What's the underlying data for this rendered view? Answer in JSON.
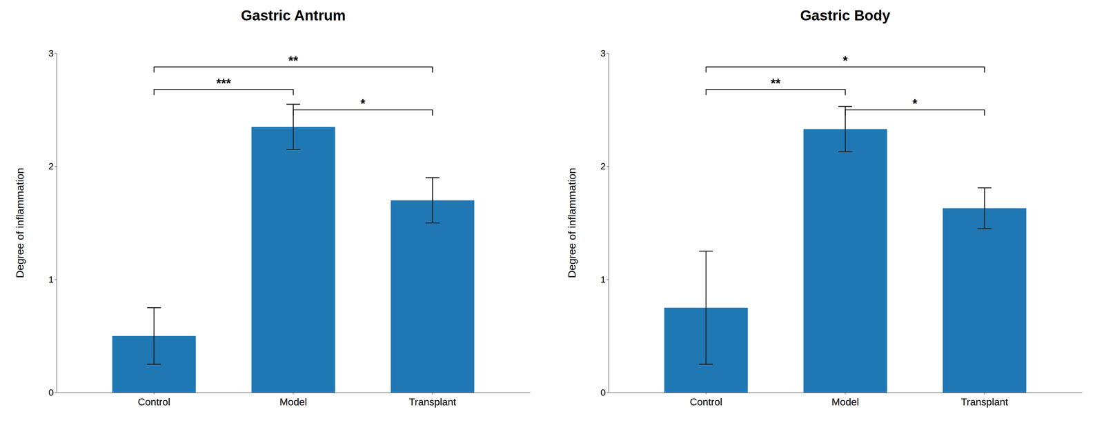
{
  "chart_data": [
    {
      "type": "bar",
      "title": "Gastric Antrum",
      "categories": [
        "Control",
        "Model",
        "Transplant"
      ],
      "values": [
        0.5,
        2.35,
        1.7
      ],
      "errors": [
        0.25,
        0.2,
        0.2
      ],
      "ylabel": "Degree of inflammation",
      "ylim": [
        0,
        3
      ],
      "yticks": [
        0,
        1,
        2,
        3
      ],
      "grid": false,
      "significance": [
        {
          "x1": 0,
          "x2": 1,
          "y": 2.68,
          "label": "***"
        },
        {
          "x1": 0,
          "x2": 2,
          "y": 2.88,
          "label": "**"
        },
        {
          "x1": 1,
          "x2": 2,
          "y": 2.5,
          "label": "*"
        }
      ]
    },
    {
      "type": "bar",
      "title": "Gastric Body",
      "categories": [
        "Control",
        "Model",
        "Transplant"
      ],
      "values": [
        0.75,
        2.33,
        1.63
      ],
      "errors": [
        0.5,
        0.2,
        0.18
      ],
      "ylabel": "Degree of inflammation",
      "ylim": [
        0,
        3
      ],
      "yticks": [
        0,
        1,
        2,
        3
      ],
      "grid": false,
      "significance": [
        {
          "x1": 0,
          "x2": 1,
          "y": 2.68,
          "label": "**"
        },
        {
          "x1": 0,
          "x2": 2,
          "y": 2.88,
          "label": "*"
        },
        {
          "x1": 1,
          "x2": 2,
          "y": 2.5,
          "label": "*"
        }
      ]
    }
  ]
}
